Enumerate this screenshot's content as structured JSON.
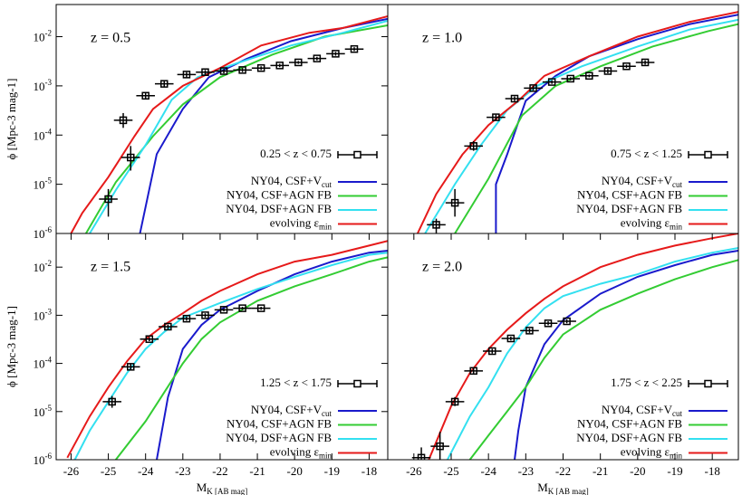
{
  "chart_data": [
    {
      "type": "line",
      "annotation": "z = 0.5",
      "ylabel": "ϕ [Mpc-3 mag-1]",
      "log_y": true,
      "xlim": [
        -26.4,
        -17.5
      ],
      "ylim": [
        1e-06,
        0.045
      ],
      "yticks": [
        {
          "value": 1e-06,
          "label": "10-6"
        },
        {
          "value": 1e-05,
          "label": "10-5"
        },
        {
          "value": 0.0001,
          "label": "10-4"
        },
        {
          "value": 0.001,
          "label": "10-3"
        },
        {
          "value": 0.01,
          "label": "10-2"
        }
      ],
      "series": [
        {
          "name": "NY04, CSF+V",
          "name_sub": "cut",
          "color": "#1a1acc",
          "x": [
            -24.15,
            -23.7,
            -23,
            -22.3,
            -21.3,
            -20.1,
            -18.7,
            -17.5
          ],
          "values": [
            1e-06,
            4.1e-05,
            0.00034,
            0.0015,
            0.0035,
            0.0081,
            0.015,
            0.023
          ]
        },
        {
          "name": "NY04, CSF+AGN FB",
          "color": "#33cc33",
          "x": [
            -25.6,
            -24.8,
            -23.8,
            -23,
            -22,
            -20.6,
            -19.2,
            -17.5
          ],
          "values": [
            1e-06,
            1.1e-05,
            9.5e-05,
            0.00042,
            0.0015,
            0.0043,
            0.01,
            0.017
          ]
        },
        {
          "name": "NY04, DSF+AGN FB",
          "color": "#33e0f0",
          "x": [
            -25.5,
            -24.8,
            -24,
            -23.3,
            -22.6,
            -21.6,
            -20.1,
            -18.7,
            -17.5
          ],
          "values": [
            1e-06,
            7.6e-06,
            6.3e-05,
            0.00052,
            0.0015,
            0.0028,
            0.0066,
            0.012,
            0.021
          ]
        },
        {
          "name": "evolving ε",
          "name_sub": "min",
          "color": "#e61a1a",
          "x": [
            -26,
            -25.7,
            -25,
            -24.3,
            -23.8,
            -23,
            -22,
            -20.9,
            -19.6,
            -18.7,
            -17.5
          ],
          "values": [
            1e-06,
            2.6e-06,
            1.4e-05,
            9.5e-05,
            0.00034,
            0.001,
            0.0023,
            0.0066,
            0.012,
            0.015,
            0.026
          ]
        }
      ],
      "observations": {
        "name": "0.25 < z < 0.75",
        "x": [
          -25.0,
          -24.4,
          -24.6,
          -24.0,
          -23.5,
          -22.9,
          -22.4,
          -21.9,
          -21.4,
          -20.9,
          -20.4,
          -19.9,
          -19.4,
          -18.9,
          -18.4
        ],
        "values": [
          5e-06,
          3.5e-05,
          0.0002,
          0.00063,
          0.0011,
          0.0017,
          0.0019,
          0.002,
          0.0021,
          0.0023,
          0.0026,
          0.003,
          0.0036,
          0.0045,
          0.0056
        ],
        "ylow": [
          2.2e-06,
          1.9e-05,
          0.00014,
          0.00054,
          0.00096,
          0.0015,
          0.0017,
          0.0018,
          0.0019,
          0.0021,
          0.0024,
          0.0028,
          0.0033,
          0.0041,
          0.0051
        ],
        "yhigh": [
          8e-06,
          6e-05,
          0.00028,
          0.00074,
          0.0013,
          0.0019,
          0.0021,
          0.0022,
          0.0023,
          0.0025,
          0.0028,
          0.0032,
          0.0039,
          0.0049,
          0.0061
        ],
        "xerr": [
          0.25,
          0.25,
          0.25,
          0.25,
          0.25,
          0.25,
          0.25,
          0.25,
          0.25,
          0.25,
          0.25,
          0.25,
          0.25,
          0.25,
          0.25
        ]
      }
    },
    {
      "type": "line",
      "annotation": "z = 1.0",
      "log_y": true,
      "xlim": [
        -26.7,
        -17.3
      ],
      "ylim": [
        1e-06,
        0.045
      ],
      "series": [
        {
          "name": "NY04, CSF+V",
          "name_sub": "cut",
          "color": "#1a1acc",
          "x": [
            -23.8,
            -23.8,
            -23.5,
            -23,
            -22.2,
            -21.3,
            -20,
            -18.6,
            -17.3
          ],
          "values": [
            1e-06,
            1e-05,
            4e-05,
            0.0005,
            0.0016,
            0.004,
            0.0089,
            0.018,
            0.028
          ]
        },
        {
          "name": "NY04, CSF+AGN FB",
          "color": "#33cc33",
          "x": [
            -24.9,
            -24,
            -23.1,
            -22.2,
            -21,
            -19.6,
            -18.1,
            -17.3
          ],
          "values": [
            1e-06,
            1.3e-05,
            0.00025,
            0.001,
            0.0025,
            0.0063,
            0.013,
            0.018
          ]
        },
        {
          "name": "NY04, DSF+AGN FB",
          "color": "#33e0f0",
          "x": [
            -25.7,
            -24.9,
            -24.2,
            -23.5,
            -22.7,
            -21.5,
            -20,
            -18.6,
            -17.3
          ],
          "values": [
            1e-06,
            1e-05,
            6.3e-05,
            0.00032,
            0.001,
            0.0025,
            0.0063,
            0.014,
            0.022
          ]
        },
        {
          "name": "evolving ε",
          "name_sub": "min",
          "color": "#e61a1a",
          "x": [
            -25.9,
            -25.4,
            -24.7,
            -24,
            -23.2,
            -22.5,
            -21.3,
            -20,
            -18.6,
            -17.3
          ],
          "values": [
            1e-06,
            6.3e-06,
            4e-05,
            0.00016,
            0.0005,
            0.0016,
            0.004,
            0.01,
            0.02,
            0.032
          ]
        }
      ],
      "observations": {
        "name": "0.75 < z < 1.25",
        "x": [
          -25.4,
          -24.9,
          -24.4,
          -23.8,
          -23.3,
          -22.8,
          -22.3,
          -21.8,
          -21.3,
          -20.8,
          -20.3,
          -19.8
        ],
        "values": [
          1.5e-06,
          4.2e-06,
          6e-05,
          0.00023,
          0.00055,
          0.0009,
          0.0012,
          0.0014,
          0.0016,
          0.002,
          0.0025,
          0.003
        ],
        "ylow": [
          1e-06,
          2.2e-06,
          4.8e-05,
          0.0002,
          0.00049,
          0.00081,
          0.0011,
          0.0013,
          0.0015,
          0.0018,
          0.0023,
          0.0027
        ],
        "yhigh": [
          2e-06,
          8e-06,
          7.5e-05,
          0.00026,
          0.00061,
          0.001,
          0.0013,
          0.0015,
          0.0017,
          0.0022,
          0.0027,
          0.0033
        ],
        "xerr": [
          0.25,
          0.25,
          0.25,
          0.25,
          0.25,
          0.25,
          0.25,
          0.25,
          0.25,
          0.25,
          0.25,
          0.25
        ]
      }
    },
    {
      "type": "line",
      "annotation": "z = 1.5",
      "ylabel": "ϕ [Mpc-3 mag-1]",
      "xlabel": "MK [AB mag]",
      "log_y": true,
      "xlim": [
        -26.4,
        -17.5
      ],
      "ylim": [
        1e-06,
        0.05
      ],
      "xticks": [
        -26,
        -25,
        -24,
        -23,
        -22,
        -21,
        -20,
        -19,
        -18
      ],
      "yticks": [
        {
          "value": 1e-06,
          "label": "10-6"
        },
        {
          "value": 1e-05,
          "label": "10-5"
        },
        {
          "value": 0.0001,
          "label": "10-4"
        },
        {
          "value": 0.001,
          "label": "10-3"
        },
        {
          "value": 0.01,
          "label": "10-2"
        }
      ],
      "series": [
        {
          "name": "NY04, CSF+V",
          "name_sub": "cut",
          "color": "#1a1acc",
          "x": [
            -23.7,
            -23.4,
            -23,
            -22.5,
            -22,
            -21,
            -20,
            -19,
            -18,
            -17.5
          ],
          "values": [
            1e-06,
            2e-05,
            0.0002,
            0.00063,
            0.0013,
            0.0032,
            0.0071,
            0.013,
            0.02,
            0.022
          ]
        },
        {
          "name": "NY04, CSF+AGN FB",
          "color": "#33cc33",
          "x": [
            -24.8,
            -24,
            -23.5,
            -23,
            -22.5,
            -22,
            -21,
            -20,
            -19,
            -18,
            -17.5
          ],
          "values": [
            1e-06,
            6.3e-06,
            2.5e-05,
            0.0001,
            0.00032,
            0.00071,
            0.002,
            0.004,
            0.0071,
            0.013,
            0.016
          ]
        },
        {
          "name": "NY04, DSF+AGN FB",
          "color": "#33e0f0",
          "x": [
            -25.9,
            -25.5,
            -25,
            -24.5,
            -24,
            -23.5,
            -23,
            -22,
            -21,
            -20,
            -19,
            -18,
            -17.5
          ],
          "values": [
            1e-06,
            4e-06,
            1.6e-05,
            6.3e-05,
            0.0002,
            0.00045,
            0.00089,
            0.0018,
            0.0035,
            0.0063,
            0.011,
            0.018,
            0.02
          ]
        },
        {
          "name": "evolving ε",
          "name_sub": "min",
          "color": "#e61a1a",
          "x": [
            -26.1,
            -25.5,
            -25,
            -24.5,
            -24,
            -23.5,
            -23,
            -22.5,
            -22,
            -21,
            -20,
            -19,
            -18,
            -17.5
          ],
          "values": [
            1.1e-06,
            7.9e-06,
            3.2e-05,
            0.00011,
            0.00032,
            0.00063,
            0.0011,
            0.002,
            0.0032,
            0.0071,
            0.013,
            0.018,
            0.028,
            0.035
          ]
        }
      ],
      "observations": {
        "name": "1.25 < z < 1.75",
        "x": [
          -24.9,
          -24.4,
          -23.9,
          -23.4,
          -22.9,
          -22.4,
          -21.9,
          -21.4,
          -20.9
        ],
        "values": [
          1.6e-05,
          8.5e-05,
          0.00032,
          0.00058,
          0.00085,
          0.001,
          0.0013,
          0.0014,
          0.0014
        ],
        "ylow": [
          1.2e-05,
          7.2e-05,
          0.00029,
          0.00052,
          0.00077,
          0.0009,
          0.0012,
          0.0013,
          0.0013
        ],
        "yhigh": [
          2.1e-05,
          0.0001,
          0.00035,
          0.00064,
          0.00094,
          0.0011,
          0.0014,
          0.0015,
          0.0015
        ],
        "xerr": [
          0.25,
          0.25,
          0.25,
          0.25,
          0.25,
          0.25,
          0.25,
          0.25,
          0.25
        ]
      }
    },
    {
      "type": "line",
      "annotation": "z = 2.0",
      "xlabel": "MK [AB mag]",
      "log_y": true,
      "xlim": [
        -26.7,
        -17.3
      ],
      "ylim": [
        1e-06,
        0.05
      ],
      "xticks": [
        -26,
        -25,
        -24,
        -23,
        -22,
        -21,
        -20,
        -19,
        -18
      ],
      "series": [
        {
          "name": "NY04, CSF+V",
          "name_sub": "cut",
          "color": "#1a1acc",
          "x": [
            -23.3,
            -23.2,
            -23,
            -22.5,
            -22,
            -21,
            -20,
            -19,
            -18,
            -17.3
          ],
          "values": [
            1e-06,
            4e-06,
            3.2e-05,
            0.00025,
            0.00079,
            0.0028,
            0.0063,
            0.011,
            0.018,
            0.022
          ]
        },
        {
          "name": "NY04, CSF+AGN FB",
          "color": "#33cc33",
          "x": [
            -24.5,
            -24,
            -23.5,
            -23,
            -22.5,
            -22,
            -21,
            -20,
            -19,
            -18,
            -17.3
          ],
          "values": [
            1e-06,
            3.2e-06,
            1e-05,
            3.2e-05,
            0.00013,
            0.0004,
            0.0013,
            0.0028,
            0.0056,
            0.01,
            0.014
          ]
        },
        {
          "name": "NY04, DSF+AGN FB",
          "color": "#33e0f0",
          "x": [
            -25.1,
            -24.5,
            -24,
            -23.5,
            -23,
            -22.5,
            -22,
            -21,
            -20,
            -19,
            -18,
            -17.3
          ],
          "values": [
            1e-06,
            7.9e-06,
            3.2e-05,
            0.00016,
            0.00056,
            0.0014,
            0.0025,
            0.0045,
            0.0071,
            0.013,
            0.02,
            0.025
          ]
        },
        {
          "name": "evolving ε",
          "name_sub": "min",
          "color": "#e61a1a",
          "x": [
            -25.6,
            -25,
            -24.5,
            -24,
            -23.5,
            -23,
            -22.5,
            -22,
            -21,
            -20,
            -19,
            -18,
            -17.3
          ],
          "values": [
            1e-06,
            1.3e-05,
            6.3e-05,
            0.0002,
            0.0005,
            0.0011,
            0.0022,
            0.004,
            0.01,
            0.018,
            0.028,
            0.04,
            0.05
          ]
        }
      ],
      "observations": {
        "name": "1.75 < z < 2.25",
        "x": [
          -25.8,
          -25.3,
          -24.9,
          -24.4,
          -23.9,
          -23.4,
          -22.9,
          -22.4,
          -21.9
        ],
        "values": [
          1.1e-06,
          1.9e-06,
          1.6e-05,
          7e-05,
          0.00018,
          0.00033,
          0.00048,
          0.00068,
          0.00075
        ],
        "ylow": [
          6e-07,
          1e-06,
          1.3e-05,
          6e-05,
          0.00016,
          0.0003,
          0.00043,
          0.00062,
          0.00068
        ],
        "yhigh": [
          1.8e-06,
          3.8e-06,
          2e-05,
          8e-05,
          0.0002,
          0.00036,
          0.00053,
          0.00075,
          0.00082
        ],
        "xerr": [
          0.25,
          0.25,
          0.25,
          0.25,
          0.25,
          0.25,
          0.25,
          0.25,
          0.25
        ]
      }
    }
  ]
}
